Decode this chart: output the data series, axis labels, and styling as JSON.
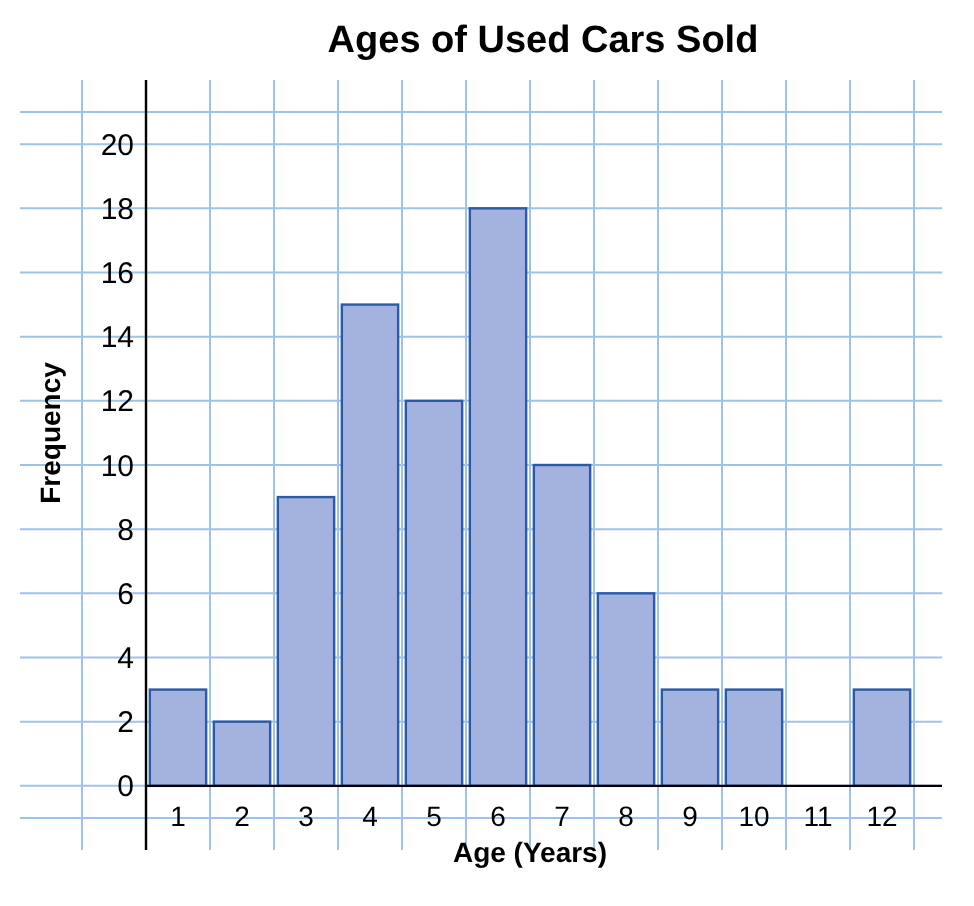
{
  "chart_data": {
    "type": "bar",
    "title": "Ages of Used Cars Sold",
    "xlabel": "Age (Years)",
    "ylabel": "Frequency",
    "categories": [
      "1",
      "2",
      "3",
      "4",
      "5",
      "6",
      "7",
      "8",
      "9",
      "10",
      "11",
      "12"
    ],
    "values": [
      3,
      2,
      9,
      15,
      12,
      18,
      10,
      6,
      3,
      3,
      0,
      3
    ],
    "color": "#a3b3de",
    "ylim": [
      -2,
      22
    ],
    "yticks": [
      0,
      2,
      4,
      6,
      8,
      10,
      12,
      14,
      16,
      18,
      20
    ],
    "grid": true
  }
}
